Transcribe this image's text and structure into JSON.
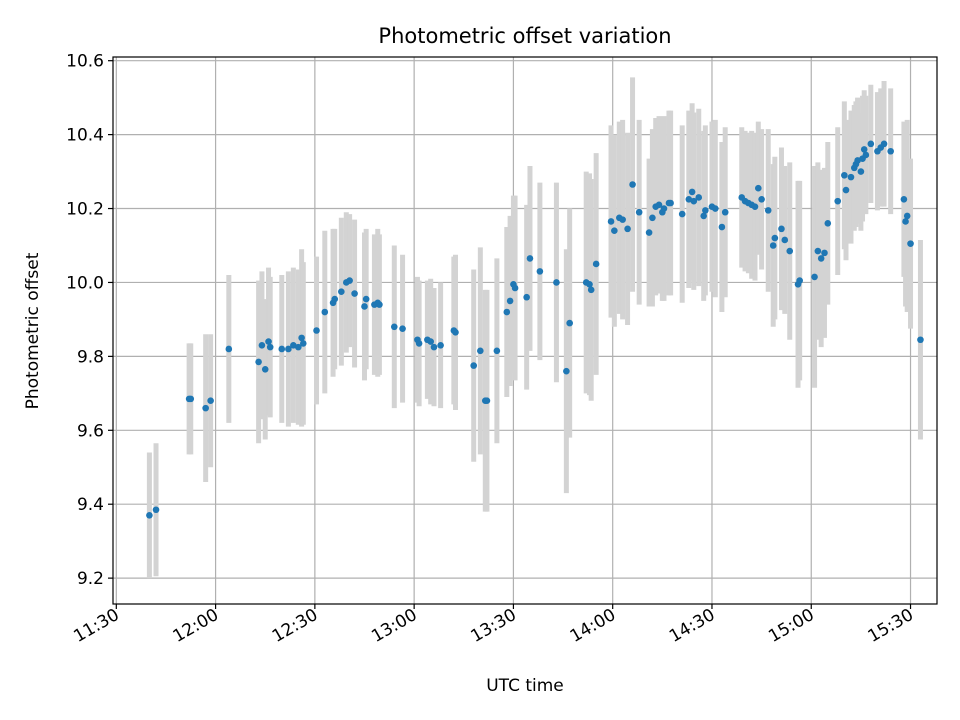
{
  "chart_data": {
    "type": "scatter",
    "title": "Photometric offset variation",
    "xlabel": "UTC time",
    "ylabel": "Photometric offset",
    "xlim": [
      "11:29",
      "15:38"
    ],
    "ylim": [
      9.13,
      10.61
    ],
    "x_ticks": [
      "11:30",
      "12:00",
      "12:30",
      "13:00",
      "13:30",
      "14:00",
      "14:30",
      "15:00",
      "15:30"
    ],
    "y_ticks": [
      "9.2",
      "9.4",
      "9.6",
      "9.8",
      "10.0",
      "10.2",
      "10.4",
      "10.6"
    ],
    "grid": true,
    "colors": {
      "points": "#1f77b4",
      "error_bars": "#d3d3d3",
      "grid": "#b0b0b0"
    },
    "series": [
      {
        "points": [
          {
            "t": "11:40",
            "y": 9.37,
            "err": 0.17
          },
          {
            "t": "11:42",
            "y": 9.385,
            "err": 0.18
          },
          {
            "t": "11:52",
            "y": 9.685,
            "err": 0.15
          },
          {
            "t": "11:52.5",
            "y": 9.685,
            "err": 0.15
          },
          {
            "t": "11:57",
            "y": 9.66,
            "err": 0.2
          },
          {
            "t": "11:58.5",
            "y": 9.68,
            "err": 0.18
          },
          {
            "t": "12:04",
            "y": 9.82,
            "err": 0.2
          },
          {
            "t": "12:13",
            "y": 9.785,
            "err": 0.22
          },
          {
            "t": "12:14",
            "y": 9.83,
            "err": 0.2
          },
          {
            "t": "12:15",
            "y": 9.765,
            "err": 0.19
          },
          {
            "t": "12:16",
            "y": 9.84,
            "err": 0.2
          },
          {
            "t": "12:16.5",
            "y": 9.825,
            "err": 0.19
          },
          {
            "t": "12:20",
            "y": 9.82,
            "err": 0.2
          },
          {
            "t": "12:22",
            "y": 9.82,
            "err": 0.21
          },
          {
            "t": "12:23.5",
            "y": 9.83,
            "err": 0.21
          },
          {
            "t": "12:25",
            "y": 9.825,
            "err": 0.21
          },
          {
            "t": "12:26",
            "y": 9.85,
            "err": 0.24
          },
          {
            "t": "12:26.5",
            "y": 9.835,
            "err": 0.22
          },
          {
            "t": "12:30.5",
            "y": 9.87,
            "err": 0.2
          },
          {
            "t": "12:33",
            "y": 9.92,
            "err": 0.22
          },
          {
            "t": "12:35.5",
            "y": 9.945,
            "err": 0.2
          },
          {
            "t": "12:36",
            "y": 9.955,
            "err": 0.19
          },
          {
            "t": "12:38",
            "y": 9.975,
            "err": 0.2
          },
          {
            "t": "12:39.5",
            "y": 10.0,
            "err": 0.19
          },
          {
            "t": "12:40.5",
            "y": 10.005,
            "err": 0.18
          },
          {
            "t": "12:42",
            "y": 9.97,
            "err": 0.2
          },
          {
            "t": "12:45",
            "y": 9.935,
            "err": 0.2
          },
          {
            "t": "12:45.5",
            "y": 9.955,
            "err": 0.19
          },
          {
            "t": "12:48",
            "y": 9.94,
            "err": 0.19
          },
          {
            "t": "12:49",
            "y": 9.945,
            "err": 0.2
          },
          {
            "t": "12:49.5",
            "y": 9.94,
            "err": 0.19
          },
          {
            "t": "12:54",
            "y": 9.88,
            "err": 0.22
          },
          {
            "t": "12:56.5",
            "y": 9.875,
            "err": 0.2
          },
          {
            "t": "13:01",
            "y": 9.845,
            "err": 0.17
          },
          {
            "t": "13:01.5",
            "y": 9.835,
            "err": 0.17
          },
          {
            "t": "13:04",
            "y": 9.845,
            "err": 0.16
          },
          {
            "t": "13:05",
            "y": 9.84,
            "err": 0.17
          },
          {
            "t": "13:06",
            "y": 9.825,
            "err": 0.16
          },
          {
            "t": "13:08",
            "y": 9.83,
            "err": 0.17
          },
          {
            "t": "13:12",
            "y": 9.87,
            "err": 0.2
          },
          {
            "t": "13:12.5",
            "y": 9.865,
            "err": 0.21
          },
          {
            "t": "13:18",
            "y": 9.775,
            "err": 0.26
          },
          {
            "t": "13:20",
            "y": 9.815,
            "err": 0.28
          },
          {
            "t": "13:21.5",
            "y": 9.68,
            "err": 0.3
          },
          {
            "t": "13:22",
            "y": 9.68,
            "err": 0.3
          },
          {
            "t": "13:25",
            "y": 9.815,
            "err": 0.25
          },
          {
            "t": "13:28",
            "y": 9.92,
            "err": 0.23
          },
          {
            "t": "13:29",
            "y": 9.95,
            "err": 0.23
          },
          {
            "t": "13:30",
            "y": 9.995,
            "err": 0.24
          },
          {
            "t": "13:30.5",
            "y": 9.985,
            "err": 0.25
          },
          {
            "t": "13:34",
            "y": 9.96,
            "err": 0.25
          },
          {
            "t": "13:35",
            "y": 10.065,
            "err": 0.25
          },
          {
            "t": "13:38",
            "y": 10.03,
            "err": 0.24
          },
          {
            "t": "13:43",
            "y": 10.0,
            "err": 0.27
          },
          {
            "t": "13:46",
            "y": 9.76,
            "err": 0.33
          },
          {
            "t": "13:47",
            "y": 9.89,
            "err": 0.31
          },
          {
            "t": "13:52",
            "y": 10.0,
            "err": 0.3
          },
          {
            "t": "13:53",
            "y": 9.995,
            "err": 0.3
          },
          {
            "t": "13:53.5",
            "y": 9.98,
            "err": 0.3
          },
          {
            "t": "13:55",
            "y": 10.05,
            "err": 0.3
          },
          {
            "t": "13:59.5",
            "y": 10.165,
            "err": 0.26
          },
          {
            "t": "14:00.5",
            "y": 10.14,
            "err": 0.26
          },
          {
            "t": "14:02",
            "y": 10.175,
            "err": 0.26
          },
          {
            "t": "14:03",
            "y": 10.17,
            "err": 0.27
          },
          {
            "t": "14:04.5",
            "y": 10.145,
            "err": 0.26
          },
          {
            "t": "14:06",
            "y": 10.265,
            "err": 0.29
          },
          {
            "t": "14:08",
            "y": 10.19,
            "err": 0.25
          },
          {
            "t": "14:11",
            "y": 10.135,
            "err": 0.2
          },
          {
            "t": "14:12",
            "y": 10.175,
            "err": 0.24
          },
          {
            "t": "14:13",
            "y": 10.205,
            "err": 0.24
          },
          {
            "t": "14:14",
            "y": 10.21,
            "err": 0.24
          },
          {
            "t": "14:15",
            "y": 10.19,
            "err": 0.24
          },
          {
            "t": "14:15.5",
            "y": 10.2,
            "err": 0.25
          },
          {
            "t": "14:17",
            "y": 10.215,
            "err": 0.25
          },
          {
            "t": "14:17.5",
            "y": 10.215,
            "err": 0.25
          },
          {
            "t": "14:21",
            "y": 10.185,
            "err": 0.24
          },
          {
            "t": "14:23",
            "y": 10.225,
            "err": 0.24
          },
          {
            "t": "14:24",
            "y": 10.245,
            "err": 0.24
          },
          {
            "t": "14:24.5",
            "y": 10.22,
            "err": 0.24
          },
          {
            "t": "14:26",
            "y": 10.23,
            "err": 0.24
          },
          {
            "t": "14:27.5",
            "y": 10.18,
            "err": 0.23
          },
          {
            "t": "14:28",
            "y": 10.195,
            "err": 0.23
          },
          {
            "t": "14:30",
            "y": 10.205,
            "err": 0.23
          },
          {
            "t": "14:31",
            "y": 10.2,
            "err": 0.24
          },
          {
            "t": "14:33",
            "y": 10.15,
            "err": 0.23
          },
          {
            "t": "14:34",
            "y": 10.19,
            "err": 0.23
          },
          {
            "t": "14:39",
            "y": 10.23,
            "err": 0.19
          },
          {
            "t": "14:40",
            "y": 10.22,
            "err": 0.19
          },
          {
            "t": "14:41",
            "y": 10.215,
            "err": 0.19
          },
          {
            "t": "14:42",
            "y": 10.21,
            "err": 0.2
          },
          {
            "t": "14:43",
            "y": 10.205,
            "err": 0.2
          },
          {
            "t": "14:44",
            "y": 10.255,
            "err": 0.18
          },
          {
            "t": "14:45",
            "y": 10.225,
            "err": 0.19
          },
          {
            "t": "14:47",
            "y": 10.195,
            "err": 0.22
          },
          {
            "t": "14:48.5",
            "y": 10.1,
            "err": 0.22
          },
          {
            "t": "14:49",
            "y": 10.12,
            "err": 0.22
          },
          {
            "t": "14:51",
            "y": 10.145,
            "err": 0.22
          },
          {
            "t": "14:52",
            "y": 10.115,
            "err": 0.2
          },
          {
            "t": "14:53.5",
            "y": 10.085,
            "err": 0.24
          },
          {
            "t": "14:56",
            "y": 9.995,
            "err": 0.28
          },
          {
            "t": "14:56.5",
            "y": 10.005,
            "err": 0.27
          },
          {
            "t": "15:01",
            "y": 10.015,
            "err": 0.3
          },
          {
            "t": "15:02",
            "y": 10.085,
            "err": 0.24
          },
          {
            "t": "15:03",
            "y": 10.065,
            "err": 0.24
          },
          {
            "t": "15:04",
            "y": 10.08,
            "err": 0.23
          },
          {
            "t": "15:05",
            "y": 10.16,
            "err": 0.22
          },
          {
            "t": "15:08",
            "y": 10.22,
            "err": 0.2
          },
          {
            "t": "15:10",
            "y": 10.29,
            "err": 0.2
          },
          {
            "t": "15:10.5",
            "y": 10.25,
            "err": 0.19
          },
          {
            "t": "15:12",
            "y": 10.285,
            "err": 0.18
          },
          {
            "t": "15:13",
            "y": 10.31,
            "err": 0.17
          },
          {
            "t": "15:13.5",
            "y": 10.32,
            "err": 0.17
          },
          {
            "t": "15:14",
            "y": 10.33,
            "err": 0.17
          },
          {
            "t": "15:15",
            "y": 10.3,
            "err": 0.16
          },
          {
            "t": "15:15.5",
            "y": 10.335,
            "err": 0.17
          },
          {
            "t": "15:16",
            "y": 10.36,
            "err": 0.16
          },
          {
            "t": "15:16.5",
            "y": 10.345,
            "err": 0.16
          },
          {
            "t": "15:18",
            "y": 10.375,
            "err": 0.16
          },
          {
            "t": "15:20",
            "y": 10.355,
            "err": 0.16
          },
          {
            "t": "15:21",
            "y": 10.365,
            "err": 0.16
          },
          {
            "t": "15:22",
            "y": 10.375,
            "err": 0.17
          },
          {
            "t": "15:24",
            "y": 10.355,
            "err": 0.17
          },
          {
            "t": "15:28",
            "y": 10.225,
            "err": 0.21
          },
          {
            "t": "15:28.5",
            "y": 10.165,
            "err": 0.23
          },
          {
            "t": "15:29",
            "y": 10.18,
            "err": 0.26
          },
          {
            "t": "15:30",
            "y": 10.105,
            "err": 0.23
          },
          {
            "t": "15:33",
            "y": 9.845,
            "err": 0.27
          }
        ]
      }
    ]
  }
}
